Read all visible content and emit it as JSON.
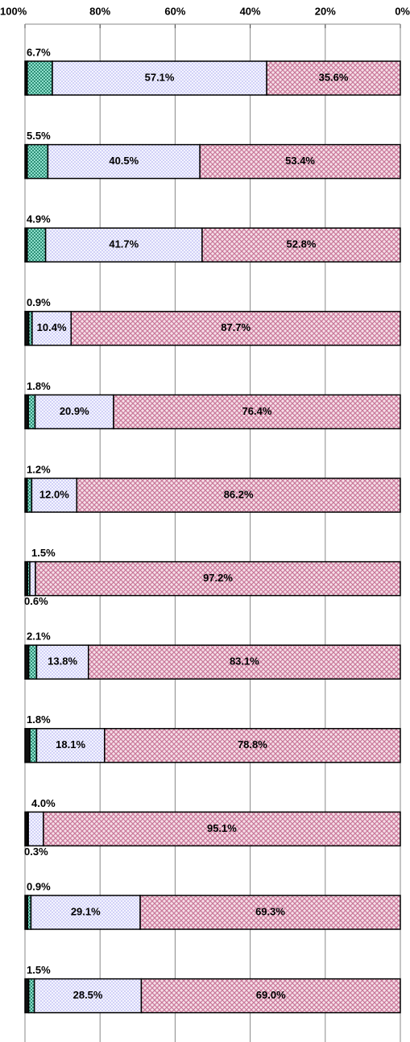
{
  "chart_data": {
    "type": "stacked-bar-horizontal",
    "categories": [
      null,
      null,
      null,
      null,
      null,
      null,
      null,
      null,
      null,
      null,
      null,
      null
    ],
    "series": [
      {
        "color": "#111111",
        "values": [
          0.6,
          0.6,
          0.6,
          1.0,
          0.9,
          0.6,
          0.7,
          1.0,
          1.3,
          0.6,
          0.7,
          1.0
        ]
      },
      {
        "color": "#5cbfa6",
        "values": [
          6.7,
          5.5,
          4.9,
          0.9,
          1.8,
          1.2,
          0.6,
          2.1,
          1.8,
          0.3,
          0.9,
          1.5
        ],
        "value_labels": [
          "6.7%",
          "5.5%",
          "4.9%",
          "0.9%",
          "1.8%",
          "1.2%",
          "0.6%",
          "2.1%",
          "1.8%",
          "0.3%",
          "0.9%",
          "1.5%"
        ]
      },
      {
        "color": "#a8a8ee",
        "values": [
          57.1,
          40.5,
          41.7,
          10.4,
          20.9,
          12.0,
          1.5,
          13.8,
          18.1,
          4.0,
          29.1,
          28.5
        ],
        "value_labels": [
          "57.1%",
          "40.5%",
          "41.7%",
          "10.4%",
          "20.9%",
          "12.0%",
          "1.5%",
          "13.8%",
          "18.1%",
          "4.0%",
          "29.1%",
          "28.5%"
        ]
      },
      {
        "color": "#c9789a",
        "values": [
          35.6,
          53.4,
          52.8,
          87.7,
          76.4,
          86.2,
          97.2,
          83.1,
          78.8,
          95.1,
          69.3,
          69.0
        ],
        "value_labels": [
          "35.6%",
          "53.4%",
          "52.8%",
          "87.7%",
          "76.4%",
          "86.2%",
          "97.2%",
          "83.1%",
          "78.8%",
          "95.1%",
          "69.3%",
          "69.0%"
        ]
      }
    ],
    "xlim": [
      100,
      0
    ],
    "xticks": [
      {
        "value": 100,
        "label": "100%"
      },
      {
        "value": 80,
        "label": "80%"
      },
      {
        "value": 60,
        "label": "60%"
      },
      {
        "value": 40,
        "label": "40%"
      },
      {
        "value": 20,
        "label": "20%"
      },
      {
        "value": 0,
        "label": "0%"
      }
    ],
    "grid": true
  }
}
